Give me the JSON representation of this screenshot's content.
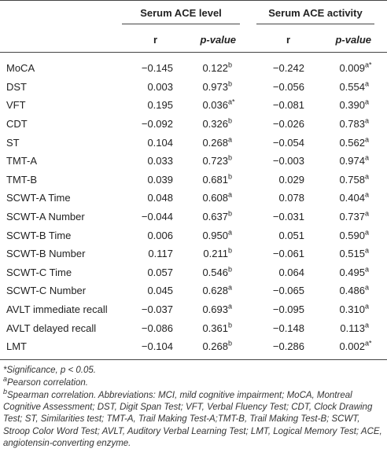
{
  "table": {
    "groups": [
      "Serum ACE level",
      "Serum ACE activity"
    ],
    "columns": [
      "r",
      "p-value",
      "r",
      "p-value"
    ],
    "rows": [
      {
        "label": "MoCA",
        "r1": "−0.145",
        "p1": "0.122",
        "s1": "b",
        "r2": "−0.242",
        "p2": "0.009",
        "s2": "a*"
      },
      {
        "label": "DST",
        "r1": "0.003",
        "p1": "0.973",
        "s1": "b",
        "r2": "−0.056",
        "p2": "0.554",
        "s2": "a"
      },
      {
        "label": "VFT",
        "r1": "0.195",
        "p1": "0.036",
        "s1": "a*",
        "r2": "−0.081",
        "p2": "0.390",
        "s2": "a"
      },
      {
        "label": "CDT",
        "r1": "−0.092",
        "p1": "0.326",
        "s1": "b",
        "r2": "−0.026",
        "p2": "0.783",
        "s2": "a"
      },
      {
        "label": "ST",
        "r1": "0.104",
        "p1": "0.268",
        "s1": "a",
        "r2": "−0.054",
        "p2": "0.562",
        "s2": "a"
      },
      {
        "label": "TMT-A",
        "r1": "0.033",
        "p1": "0.723",
        "s1": "b",
        "r2": "−0.003",
        "p2": "0.974",
        "s2": "a"
      },
      {
        "label": "TMT-B",
        "r1": "0.039",
        "p1": "0.681",
        "s1": "b",
        "r2": "0.029",
        "p2": "0.758",
        "s2": "a"
      },
      {
        "label": "SCWT-A Time",
        "r1": "0.048",
        "p1": "0.608",
        "s1": "a",
        "r2": "0.078",
        "p2": "0.404",
        "s2": "a"
      },
      {
        "label": "SCWT-A Number",
        "r1": "−0.044",
        "p1": "0.637",
        "s1": "b",
        "r2": "−0.031",
        "p2": "0.737",
        "s2": "a"
      },
      {
        "label": "SCWT-B Time",
        "r1": "0.006",
        "p1": "0.950",
        "s1": "a",
        "r2": "0.051",
        "p2": "0.590",
        "s2": "a"
      },
      {
        "label": "SCWT-B Number",
        "r1": "0.117",
        "p1": "0.211",
        "s1": "b",
        "r2": "−0.061",
        "p2": "0.515",
        "s2": "a"
      },
      {
        "label": "SCWT-C Time",
        "r1": "0.057",
        "p1": "0.546",
        "s1": "b",
        "r2": "0.064",
        "p2": "0.495",
        "s2": "a"
      },
      {
        "label": "SCWT-C Number",
        "r1": "0.045",
        "p1": "0.628",
        "s1": "a",
        "r2": "−0.065",
        "p2": "0.486",
        "s2": "a"
      },
      {
        "label": "AVLT immediate recall",
        "r1": "−0.037",
        "p1": "0.693",
        "s1": "a",
        "r2": "−0.095",
        "p2": "0.310",
        "s2": "a"
      },
      {
        "label": "AVLT delayed recall",
        "r1": "−0.086",
        "p1": "0.361",
        "s1": "b",
        "r2": "−0.148",
        "p2": "0.113",
        "s2": "a"
      },
      {
        "label": "LMT",
        "r1": "−0.104",
        "p1": "0.268",
        "s1": "b",
        "r2": "−0.286",
        "p2": "0.002",
        "s2": "a*"
      }
    ]
  },
  "footnotes": [
    {
      "marker": "*",
      "text": "Significance, p < 0.05."
    },
    {
      "marker": "a",
      "text": "Pearson correlation."
    },
    {
      "marker": "b",
      "text": "Spearman correlation. Abbreviations: MCI, mild cognitive impairment; MoCA, Montreal Cognitive Assessment; DST, Digit Span Test; VFT, Verbal Fluency Test; CDT, Clock Drawing Test; ST, Similarities test; TMT-A, Trail Making Test-A;TMT-B, Trail Making Test-B; SCWT, Stroop Color Word Test; AVLT, Auditory Verbal Learning Test; LMT, Logical Memory Test; ACE, angiotensin-converting enzyme."
    }
  ]
}
